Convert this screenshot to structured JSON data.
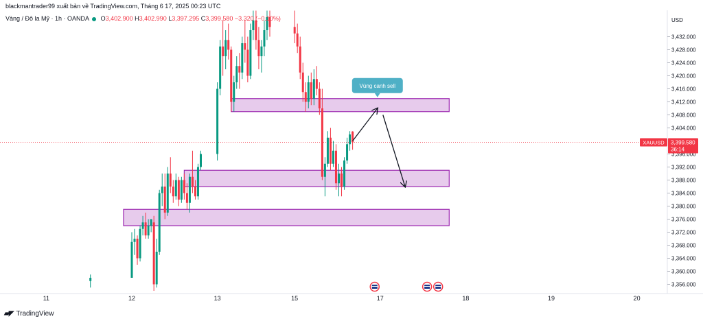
{
  "header": {
    "publisher_line": "blackmantrader99 xuất bản về TradingView.com, Tháng 6 17, 2025 00:23 UTC",
    "symbol_title": "Vàng / Đô la Mỹ · 1h · OANDA",
    "open_label": "O",
    "open_value": "3,402.900",
    "high_label": "H",
    "high_value": "3,402.990",
    "low_label": "L",
    "low_value": "3,397.295",
    "close_label": "C",
    "close_value": "3,399.580",
    "change": "−3.320 (−0.10%)"
  },
  "footer": {
    "logo_text": "TradingView"
  },
  "colors": {
    "up": "#089981",
    "down": "#f23645",
    "zone_fill": "#e1bee7",
    "zone_stroke": "#9c27b0",
    "callout": "#4fb0c6",
    "price_tag": "#f23645"
  },
  "chart_data": {
    "type": "candlestick",
    "title": "",
    "currency": "USD",
    "symbol": "XAUUSD",
    "last_price": "3,399.580",
    "countdown": "36:14",
    "ylim": [
      3354,
      3440
    ],
    "y_ticks": [
      "3,356.000",
      "3,360.000",
      "3,364.000",
      "3,368.000",
      "3,372.000",
      "3,376.000",
      "3,380.000",
      "3,384.000",
      "3,388.000",
      "3,392.000",
      "3,396.000",
      "3,404.000",
      "3,408.000",
      "3,412.000",
      "3,416.000",
      "3,420.000",
      "3,424.000",
      "3,428.000",
      "3,432.000"
    ],
    "x_ticks": [
      {
        "label": "11",
        "bar": -31
      },
      {
        "label": "12",
        "bar": 0
      },
      {
        "label": "13",
        "bar": 31
      },
      {
        "label": "15",
        "bar": 59
      },
      {
        "label": "17",
        "bar": 90
      },
      {
        "label": "18",
        "bar": 121
      },
      {
        "label": "19",
        "bar": 152
      },
      {
        "label": "20",
        "bar": 183
      }
    ],
    "candles_note": "bar index 0 = day 12 start, 1 bar = 1 hour",
    "candles": [
      [
        -15,
        3357,
        3359,
        3355,
        3358
      ],
      [
        0,
        3358,
        3372,
        3358,
        3369
      ],
      [
        1,
        3369,
        3373,
        3365,
        3370
      ],
      [
        2,
        3370,
        3371,
        3362,
        3364
      ],
      [
        3,
        3364,
        3374,
        3363,
        3373
      ],
      [
        4,
        3373,
        3377,
        3371,
        3375
      ],
      [
        5,
        3375,
        3378,
        3370,
        3371
      ],
      [
        6,
        3371,
        3376,
        3370,
        3374
      ],
      [
        7,
        3374,
        3376,
        3372,
        3376
      ],
      [
        8,
        3375,
        3377,
        3354,
        3356
      ],
      [
        9,
        3356,
        3370,
        3355,
        3366
      ],
      [
        10,
        3366,
        3385,
        3365,
        3384
      ],
      [
        11,
        3384,
        3390,
        3380,
        3386
      ],
      [
        12,
        3386,
        3390,
        3376,
        3378
      ],
      [
        13,
        3378,
        3392,
        3377,
        3390
      ],
      [
        14,
        3390,
        3395,
        3384,
        3386
      ],
      [
        15,
        3386,
        3388,
        3381,
        3383
      ],
      [
        16,
        3383,
        3390,
        3382,
        3388
      ],
      [
        17,
        3388,
        3389,
        3380,
        3382
      ],
      [
        18,
        3382,
        3389,
        3381,
        3388
      ],
      [
        19,
        3388,
        3390,
        3382,
        3384
      ],
      [
        20,
        3384,
        3387,
        3379,
        3381
      ],
      [
        21,
        3381,
        3390,
        3378,
        3389
      ],
      [
        22,
        3389,
        3397,
        3384,
        3386
      ],
      [
        23,
        3386,
        3388,
        3382,
        3383
      ],
      [
        24,
        3383,
        3393,
        3382,
        3392
      ],
      [
        25,
        3392,
        3397,
        3391,
        3396
      ],
      [
        31,
        3396,
        3418,
        3394,
        3416
      ],
      [
        32,
        3416,
        3431,
        3414,
        3429
      ],
      [
        33,
        3429,
        3437,
        3420,
        3426
      ],
      [
        34,
        3426,
        3434,
        3422,
        3431
      ],
      [
        35,
        3431,
        3436,
        3425,
        3428
      ],
      [
        36,
        3428,
        3429,
        3409,
        3412
      ],
      [
        37,
        3412,
        3420,
        3409,
        3418
      ],
      [
        38,
        3418,
        3426,
        3416,
        3423
      ],
      [
        39,
        3423,
        3427,
        3416,
        3421
      ],
      [
        40,
        3421,
        3432,
        3419,
        3430
      ],
      [
        41,
        3430,
        3437,
        3424,
        3428
      ],
      [
        42,
        3428,
        3432,
        3418,
        3420
      ],
      [
        43,
        3420,
        3436,
        3419,
        3434
      ],
      [
        44,
        3434,
        3440,
        3431,
        3437
      ],
      [
        45,
        3437,
        3440,
        3428,
        3431
      ],
      [
        46,
        3431,
        3435,
        3422,
        3426
      ],
      [
        47,
        3426,
        3431,
        3421,
        3429
      ],
      [
        48,
        3429,
        3437,
        3426,
        3434
      ],
      [
        49,
        3434,
        3440,
        3431,
        3438
      ],
      [
        50,
        3438,
        3440,
        3432,
        3435
      ],
      [
        59,
        3435,
        3440,
        3430,
        3433
      ],
      [
        60,
        3433,
        3436,
        3427,
        3429
      ],
      [
        61,
        3429,
        3432,
        3419,
        3421
      ],
      [
        62,
        3421,
        3424,
        3412,
        3415
      ],
      [
        63,
        3415,
        3418,
        3409,
        3412
      ],
      [
        64,
        3412,
        3420,
        3410,
        3418
      ],
      [
        65,
        3418,
        3421,
        3411,
        3413
      ],
      [
        66,
        3413,
        3422,
        3411,
        3419
      ],
      [
        67,
        3419,
        3423,
        3414,
        3416
      ],
      [
        68,
        3416,
        3418,
        3408,
        3410
      ],
      [
        69,
        3410,
        3416,
        3388,
        3389
      ],
      [
        70,
        3389,
        3395,
        3383,
        3393
      ],
      [
        71,
        3393,
        3403,
        3392,
        3401
      ],
      [
        72,
        3401,
        3404,
        3391,
        3393
      ],
      [
        73,
        3393,
        3400,
        3392,
        3397
      ],
      [
        74,
        3397,
        3399,
        3385,
        3387
      ],
      [
        75,
        3387,
        3393,
        3383,
        3390
      ],
      [
        76,
        3390,
        3392,
        3383,
        3386
      ],
      [
        77,
        3386,
        3395,
        3385,
        3394
      ],
      [
        78,
        3394,
        3401,
        3393,
        3399
      ],
      [
        79,
        3399,
        3403,
        3397,
        3402
      ],
      [
        80,
        3402.9,
        3402.99,
        3397.295,
        3399.58
      ]
    ],
    "zones": [
      {
        "name": "zone-top",
        "y0": 3409,
        "y1": 3413,
        "bar0": 36,
        "bar1": 115
      },
      {
        "name": "zone-middle",
        "y0": 3386,
        "y1": 3391,
        "bar0": 19,
        "bar1": 115
      },
      {
        "name": "zone-bottom",
        "y0": 3374,
        "y1": 3379,
        "bar0": -3,
        "bar1": 115
      }
    ],
    "annotation": {
      "text": "Vùng canh sell",
      "bar": 89,
      "y": 3417
    },
    "path": [
      [
        80,
        3400
      ],
      [
        89,
        3410
      ],
      [
        91,
        3408
      ],
      [
        99,
        3386
      ]
    ],
    "event_markers": [
      {
        "bar": 88
      },
      {
        "bar": 107
      },
      {
        "bar": 111
      }
    ]
  }
}
